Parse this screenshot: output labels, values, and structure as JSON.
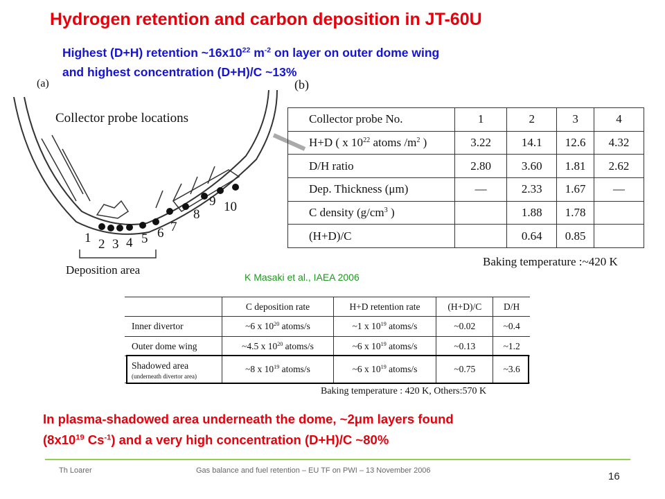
{
  "title": "Hydrogen retention and carbon deposition in JT-60U",
  "subtitle": {
    "line1": [
      "Highest (D+H) retention ~16x10",
      "22",
      " m",
      "-2",
      " on layer on outer dome wing"
    ],
    "line2": [
      "and highest concentration (D+H)/C ~13%"
    ]
  },
  "figure_a": {
    "panel": "(a)",
    "caption": "Collector probe locations",
    "probes": [
      "1",
      "2",
      "3",
      "4",
      "5",
      "6",
      "7",
      "8",
      "9",
      "10"
    ],
    "area": "Deposition area"
  },
  "figure_b": {
    "panel": "(b)",
    "table": {
      "header": [
        [
          "Collector probe No."
        ],
        [
          "1"
        ],
        [
          "2"
        ],
        [
          "3"
        ],
        [
          "4"
        ]
      ],
      "rows": [
        [
          [
            "H+D ( x 10",
            "22",
            " atoms /m",
            "2",
            " )"
          ],
          [
            "3.22"
          ],
          [
            "14.1"
          ],
          [
            "12.6"
          ],
          [
            "4.32"
          ]
        ],
        [
          [
            "D/H ratio"
          ],
          [
            "2.80"
          ],
          [
            "3.60"
          ],
          [
            "1.81"
          ],
          [
            "2.62"
          ]
        ],
        [
          [
            "Dep. Thickness (μm)"
          ],
          [
            "―"
          ],
          [
            "2.33"
          ],
          [
            "1.67"
          ],
          [
            "―"
          ]
        ],
        [
          [
            "C density (g/cm",
            "3",
            " )"
          ],
          [],
          [
            "1.88"
          ],
          [
            "1.78"
          ],
          []
        ],
        [
          [
            "(H+D)/C"
          ],
          [],
          [
            "0.64"
          ],
          [
            "0.85"
          ],
          []
        ]
      ]
    },
    "note": "Baking temperature :~420 K"
  },
  "citation": "K Masaki et al., IAEA 2006",
  "table2": {
    "header": [
      [],
      [
        "C deposition rate"
      ],
      [
        "H+D retention rate"
      ],
      [
        "(H+D)/C"
      ],
      [
        "D/H"
      ]
    ],
    "rows": [
      [
        [
          "Inner divertor"
        ],
        [
          "~6 x 10",
          "20",
          " atoms/s"
        ],
        [
          "~1 x 10",
          "19",
          " atoms/s"
        ],
        [
          "~0.02"
        ],
        [
          "~0.4"
        ]
      ],
      [
        [
          "Outer dome wing"
        ],
        [
          "~4.5 x 10",
          "20",
          " atoms/s"
        ],
        [
          "~6 x 10",
          "19",
          " atoms/s"
        ],
        [
          "~0.13"
        ],
        [
          "~1.2"
        ]
      ],
      [
        [
          "Shadowed  area"
        ],
        [
          "~8 x 10",
          "19",
          " atoms/s"
        ],
        [
          "~6 x 10",
          "19",
          " atoms/s"
        ],
        [
          "~0.75"
        ],
        [
          "~3.6"
        ]
      ]
    ],
    "row_note": "(underneath divertor area)",
    "note": "Baking temperature : 420 K, Others:570 K"
  },
  "conclusion": {
    "line1": [
      "In plasma-shadowed area underneath the dome, ~2μm layers found"
    ],
    "line2": [
      "(8x10",
      "19",
      " Cs",
      "-1",
      ") and a very high concentration (D+H)/C ~80%"
    ]
  },
  "footer": {
    "author": "Th Loarer",
    "event": "Gas balance and fuel retention – EU TF on PWI – 13 November 2006",
    "page": "16"
  }
}
